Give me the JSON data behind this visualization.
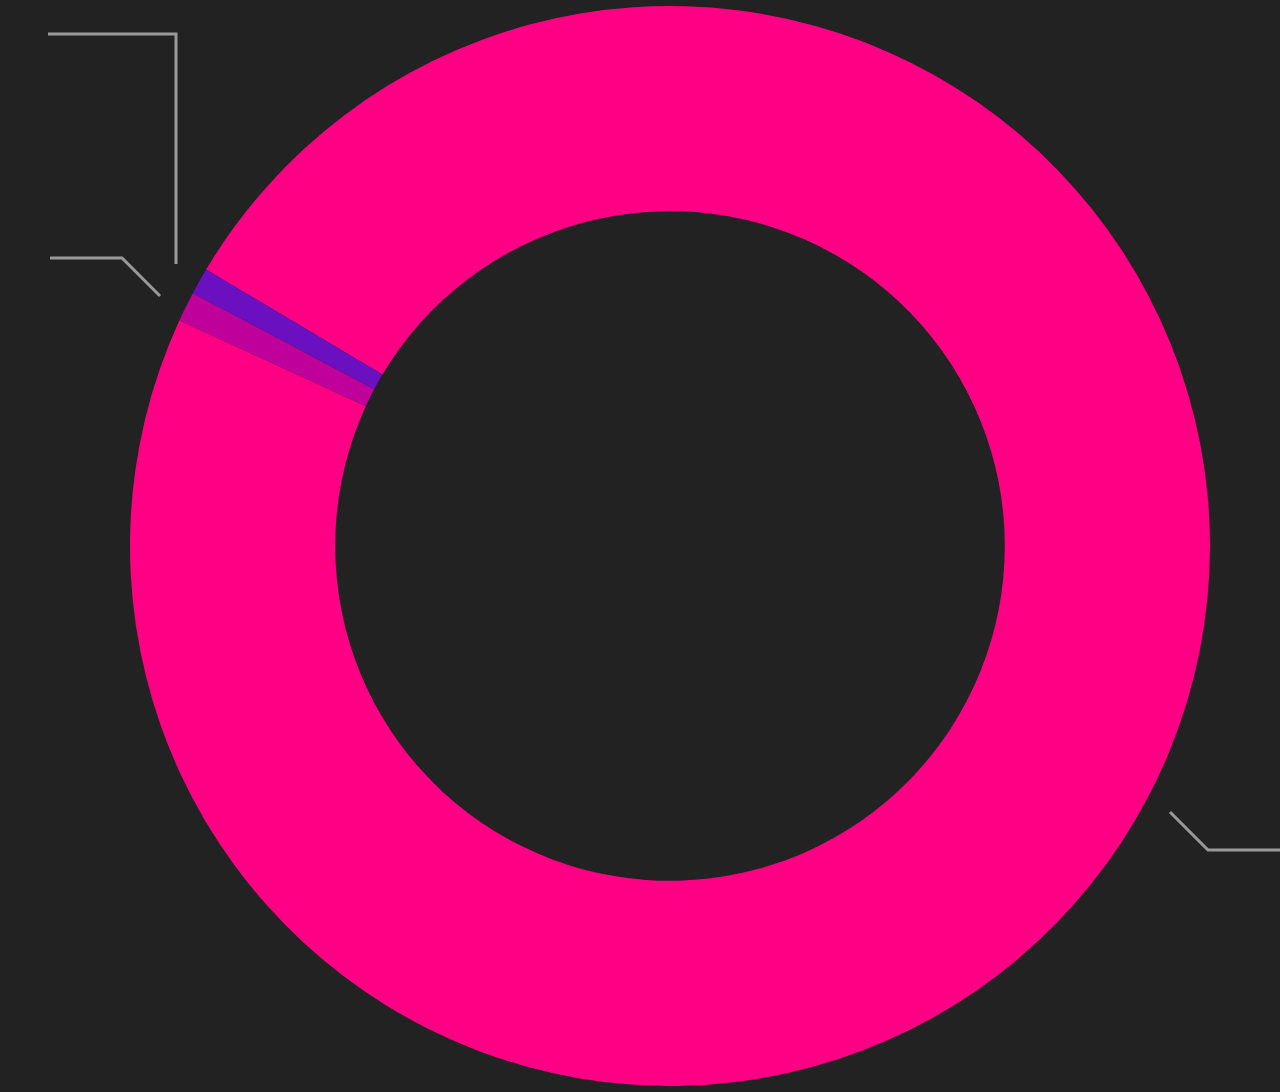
{
  "chart_data": {
    "type": "donut",
    "categories": [
      null,
      null,
      null
    ],
    "values": [
      98.3,
      0.9,
      0.8
    ],
    "colors": [
      "#ff0084",
      "#c0009a",
      "#6a10c0"
    ]
  }
}
